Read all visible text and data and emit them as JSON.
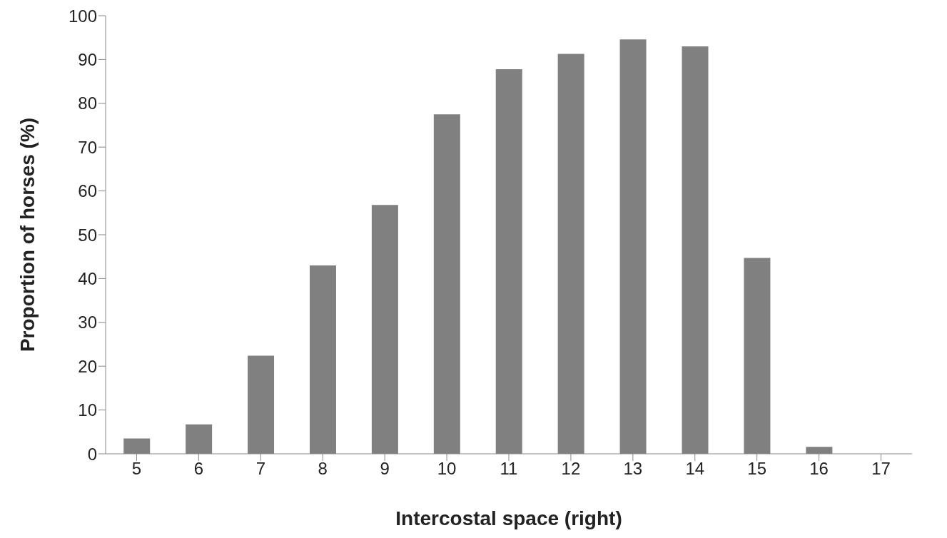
{
  "chart_data": {
    "type": "bar",
    "xlabel": "Intercostal space (right)",
    "ylabel": "Proportion of horses (%)",
    "categories": [
      "5",
      "6",
      "7",
      "8",
      "9",
      "10",
      "11",
      "12",
      "13",
      "14",
      "15",
      "16",
      "17"
    ],
    "values": [
      3.5,
      6.7,
      22.4,
      43,
      56.8,
      77.5,
      87.8,
      91.3,
      94.6,
      93,
      44.7,
      1.6,
      0
    ],
    "color": "#808080",
    "ylim": [
      0,
      100
    ],
    "yticks": [
      0,
      10,
      20,
      30,
      40,
      50,
      60,
      70,
      80,
      90,
      100
    ],
    "grid": false
  }
}
